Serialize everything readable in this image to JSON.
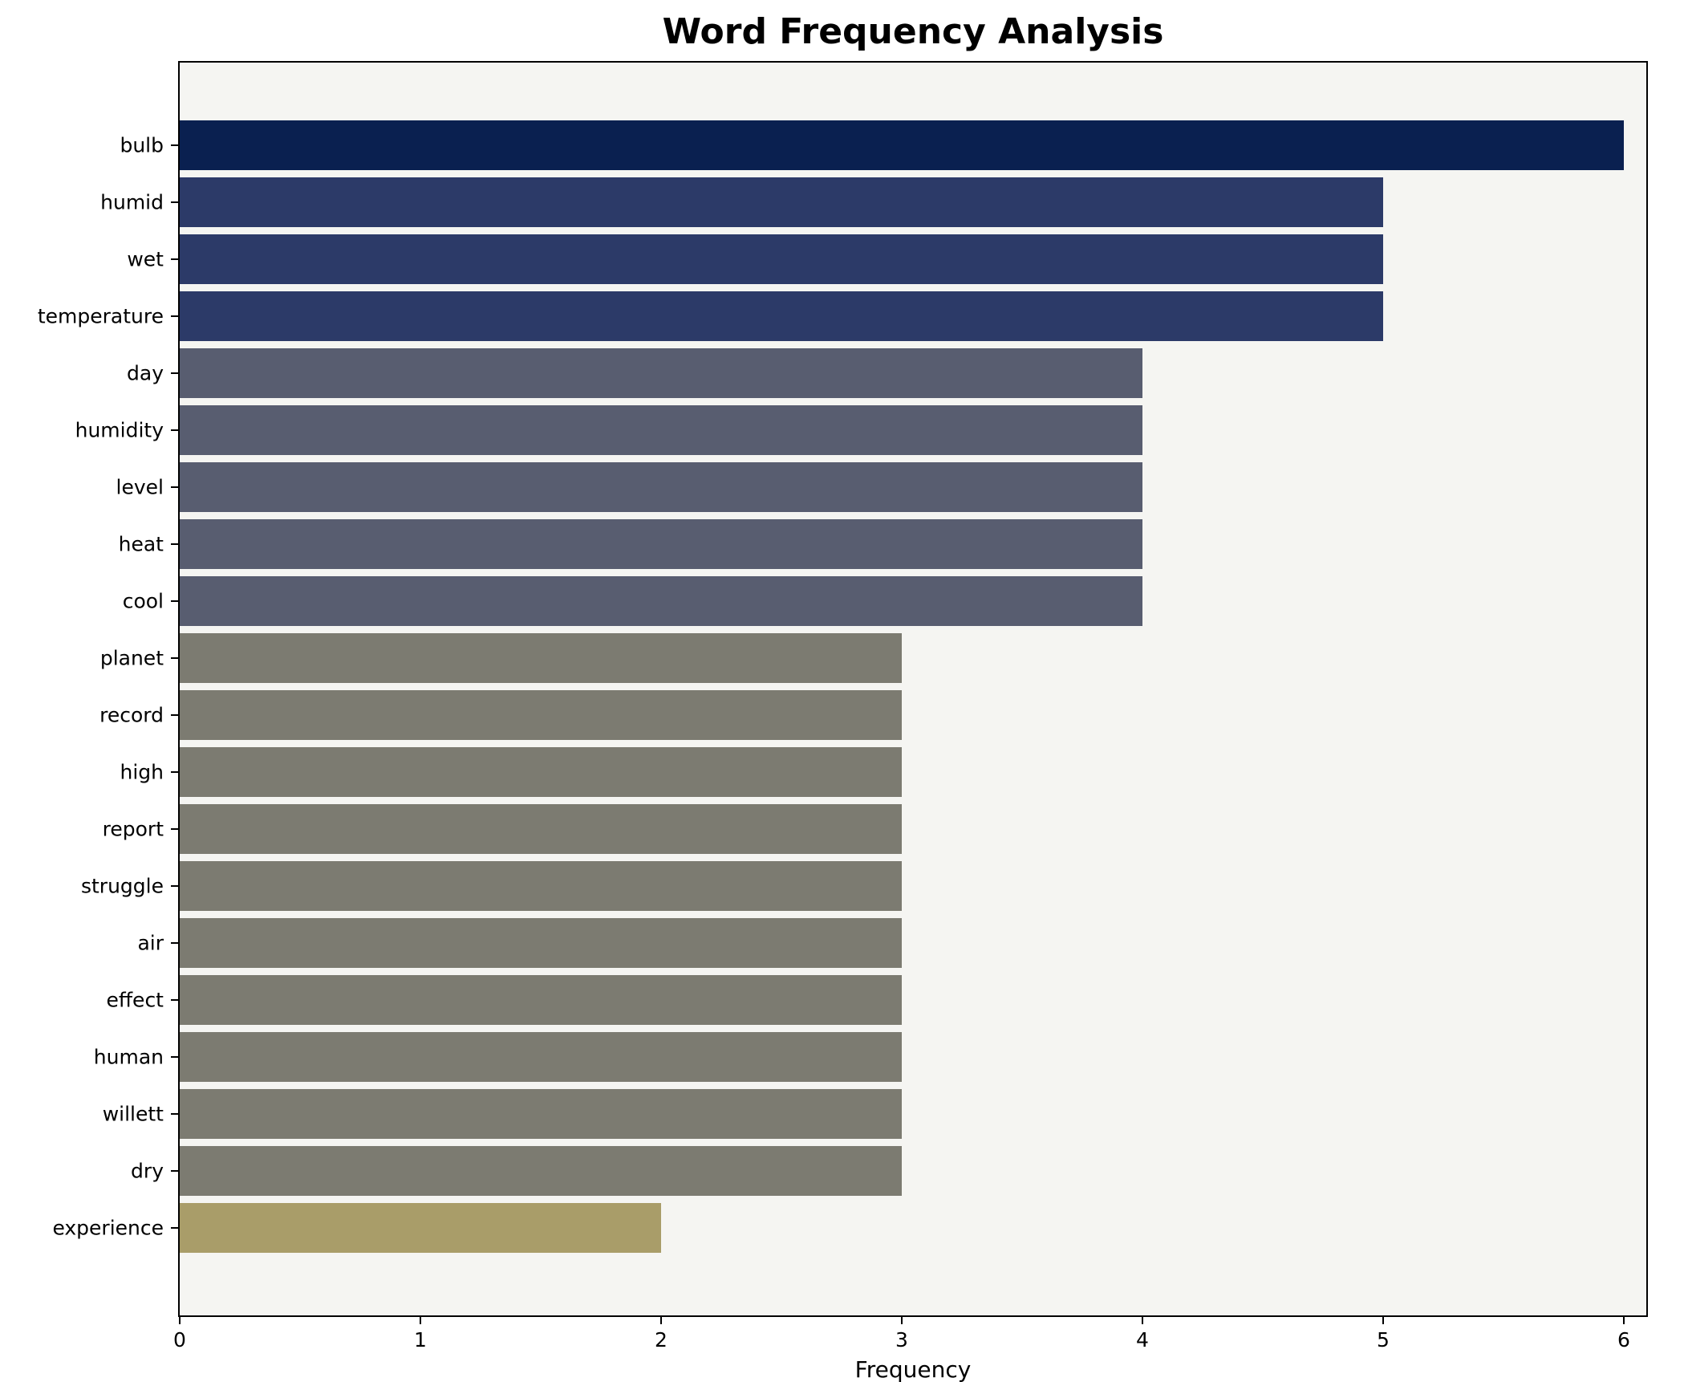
{
  "title": "Word Frequency Analysis",
  "xlabel": "Frequency",
  "x_ticks": [
    "0",
    "1",
    "2",
    "3",
    "4",
    "5",
    "6"
  ],
  "chart_data": {
    "type": "bar",
    "orientation": "horizontal",
    "title": "Word Frequency Analysis",
    "xlabel": "Frequency",
    "ylabel": "",
    "xlim": [
      0,
      6
    ],
    "grid": false,
    "legend": false,
    "plot_background": "#f5f5f2",
    "categories": [
      "bulb",
      "humid",
      "wet",
      "temperature",
      "day",
      "humidity",
      "level",
      "heat",
      "cool",
      "planet",
      "record",
      "high",
      "report",
      "struggle",
      "air",
      "effect",
      "human",
      "willett",
      "dry",
      "experience"
    ],
    "values": [
      6,
      5,
      5,
      5,
      4,
      4,
      4,
      4,
      4,
      3,
      3,
      3,
      3,
      3,
      3,
      3,
      3,
      3,
      3,
      2
    ],
    "bar_colors": [
      "#0a2050",
      "#2c3a68",
      "#2c3a68",
      "#2c3a68",
      "#585d70",
      "#585d70",
      "#585d70",
      "#585d70",
      "#585d70",
      "#7c7b71",
      "#7c7b71",
      "#7c7b71",
      "#7c7b71",
      "#7c7b71",
      "#7c7b71",
      "#7c7b71",
      "#7c7b71",
      "#7c7b71",
      "#7c7b71",
      "#a99d69"
    ]
  }
}
